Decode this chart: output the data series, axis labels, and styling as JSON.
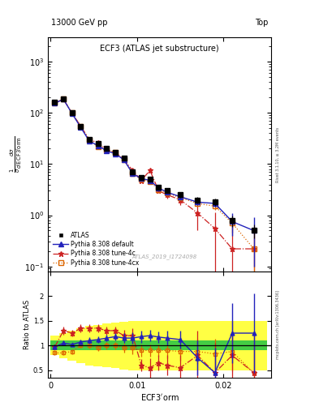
{
  "title_main": "ECF3 (ATLAS jet substructure)",
  "top_left_label": "13000 GeV pp",
  "top_right_label": "Top",
  "ylabel_main": "$\\frac{1}{\\sigma}\\frac{d\\sigma}{d\\,\\mathrm{ECF3^{\\prime}orm}}$",
  "ylabel_ratio": "Ratio to ATLAS",
  "xlabel": "ECF3$^{\\prime}$orm",
  "watermark": "ATLAS_2019_I1724098",
  "right_label_top": "Rivet 3.1.10, ≥ 3.2M events",
  "right_label_bot": "mcplots.cern.ch [arXiv:1306.3436]",
  "ylim_main": [
    0.08,
    3000
  ],
  "ylim_ratio": [
    0.35,
    2.5
  ],
  "xbins": [
    0.0,
    0.001,
    0.002,
    0.003,
    0.004,
    0.005,
    0.006,
    0.007,
    0.008,
    0.009,
    0.01,
    0.011,
    0.012,
    0.013,
    0.014,
    0.016,
    0.018,
    0.02,
    0.022,
    0.025
  ],
  "atlas_y": [
    160,
    190,
    100,
    55,
    30,
    25,
    20,
    17,
    13,
    7.0,
    5.5,
    5.0,
    3.5,
    3.0,
    2.5,
    2.0,
    1.8,
    0.8,
    0.5
  ],
  "atlas_yerr": [
    8,
    10,
    5,
    3,
    2,
    1.5,
    1.2,
    1.0,
    0.8,
    0.5,
    0.4,
    0.4,
    0.3,
    0.3,
    0.3,
    0.3,
    0.3,
    0.2,
    0.15
  ],
  "py_default_y": [
    155,
    185,
    97,
    52,
    28,
    23,
    18,
    16,
    12,
    6.5,
    5.2,
    4.8,
    3.4,
    2.8,
    2.3,
    1.8,
    1.7,
    0.75,
    0.5
  ],
  "py_default_yerr": [
    5,
    6,
    3,
    2,
    1.2,
    1.0,
    0.8,
    0.7,
    0.5,
    0.4,
    0.3,
    0.3,
    0.2,
    0.2,
    0.2,
    0.2,
    0.25,
    0.35,
    0.4
  ],
  "py_4c_y": [
    155,
    185,
    98,
    55,
    30,
    26,
    19,
    17,
    12,
    7.5,
    4.8,
    7.5,
    3.0,
    2.5,
    2.0,
    1.1,
    0.55,
    0.22,
    0.22
  ],
  "py_4c_yerr": [
    5,
    6,
    3,
    2,
    1.2,
    1.0,
    0.8,
    0.7,
    0.5,
    0.6,
    0.4,
    0.8,
    0.3,
    0.4,
    0.4,
    0.6,
    0.6,
    0.4,
    0.4
  ],
  "py_4cx_y": [
    158,
    188,
    100,
    55,
    29,
    22,
    19,
    17,
    12,
    6.5,
    5.0,
    4.5,
    3.2,
    2.7,
    2.2,
    1.7,
    1.5,
    0.7,
    0.22
  ],
  "py_4cx_yerr": [
    5,
    6,
    3,
    2,
    1.2,
    1.0,
    0.8,
    0.7,
    0.5,
    0.4,
    0.3,
    0.3,
    0.2,
    0.2,
    0.2,
    0.2,
    0.25,
    0.25,
    0.3
  ],
  "ratio_default_y": [
    0.97,
    1.05,
    1.02,
    1.07,
    1.1,
    1.12,
    1.15,
    1.18,
    1.15,
    1.15,
    1.18,
    1.2,
    1.17,
    1.15,
    1.12,
    0.75,
    0.45,
    1.25,
    1.25
  ],
  "ratio_default_yerr": [
    0.05,
    0.05,
    0.04,
    0.05,
    0.06,
    0.06,
    0.07,
    0.07,
    0.1,
    0.12,
    0.12,
    0.12,
    0.12,
    0.15,
    0.18,
    0.35,
    0.5,
    0.6,
    0.8
  ],
  "ratio_4c_y": [
    0.97,
    1.3,
    1.25,
    1.35,
    1.35,
    1.35,
    1.3,
    1.3,
    1.2,
    1.2,
    0.6,
    0.55,
    0.65,
    0.6,
    0.55,
    0.8,
    0.45,
    0.8,
    0.45
  ],
  "ratio_4c_yerr": [
    0.05,
    0.08,
    0.07,
    0.08,
    0.08,
    0.08,
    0.08,
    0.08,
    0.12,
    0.15,
    0.12,
    0.2,
    0.15,
    0.2,
    0.25,
    0.5,
    0.6,
    0.7,
    0.8
  ],
  "ratio_4cx_y": [
    0.85,
    0.85,
    0.88,
    1.0,
    1.0,
    0.95,
    1.0,
    1.0,
    0.95,
    0.95,
    0.9,
    0.9,
    0.9,
    0.9,
    0.88,
    0.88,
    0.83,
    0.88,
    0.44
  ],
  "ratio_4cx_yerr": [
    0.05,
    0.05,
    0.05,
    0.05,
    0.06,
    0.06,
    0.07,
    0.07,
    0.1,
    0.12,
    0.12,
    0.12,
    0.12,
    0.15,
    0.18,
    0.25,
    0.3,
    0.4,
    0.6
  ],
  "green_band_lo": [
    0.9,
    0.9,
    0.9,
    0.9,
    0.9,
    0.9,
    0.9,
    0.9,
    0.9,
    0.9,
    0.9,
    0.9,
    0.9,
    0.9,
    0.9,
    0.9,
    0.9,
    0.9,
    0.9
  ],
  "green_band_hi": [
    1.1,
    1.1,
    1.1,
    1.1,
    1.1,
    1.1,
    1.1,
    1.1,
    1.1,
    1.1,
    1.1,
    1.1,
    1.1,
    1.1,
    1.1,
    1.1,
    1.1,
    1.1,
    1.1
  ],
  "yellow_band_lo": [
    0.8,
    0.75,
    0.7,
    0.65,
    0.6,
    0.58,
    0.56,
    0.54,
    0.52,
    0.5,
    0.5,
    0.5,
    0.5,
    0.5,
    0.5,
    0.5,
    0.5,
    0.5,
    0.5
  ],
  "yellow_band_hi": [
    1.2,
    1.25,
    1.3,
    1.35,
    1.4,
    1.42,
    1.44,
    1.46,
    1.48,
    1.5,
    1.5,
    1.5,
    1.5,
    1.5,
    1.5,
    1.5,
    1.5,
    1.5,
    1.5
  ],
  "color_atlas": "black",
  "color_default": "#2222bb",
  "color_4c": "#cc2222",
  "color_4cx": "#dd6600"
}
